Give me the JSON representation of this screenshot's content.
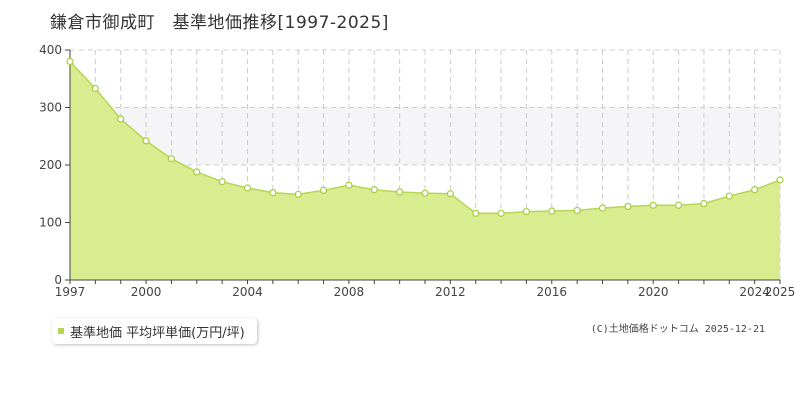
{
  "title": "鎌倉市御成町　基準地価推移[1997-2025]",
  "legend": {
    "label": "基準地価 平均坪単価(万円/坪)"
  },
  "copyright": "(C)土地価格ドットコム 2025-12-21",
  "colors": {
    "fill": "#d9ec8f",
    "line": "#b8d656",
    "marker_fill": "#ffffff",
    "marker_stroke": "#a9cc3d",
    "band": "#f5f5f7",
    "grid": "#cccccc",
    "axis": "#444444"
  },
  "chart_data": {
    "type": "area",
    "x": [
      1997,
      1998,
      1999,
      2000,
      2001,
      2002,
      2003,
      2004,
      2005,
      2006,
      2007,
      2008,
      2009,
      2010,
      2011,
      2012,
      2013,
      2014,
      2015,
      2016,
      2017,
      2018,
      2019,
      2020,
      2021,
      2022,
      2023,
      2024,
      2025
    ],
    "series": [
      {
        "name": "基準地価 平均坪単価(万円/坪)",
        "values": [
          380,
          333,
          280,
          242,
          211,
          188,
          171,
          160,
          152,
          149,
          156,
          165,
          157,
          153,
          151,
          150,
          116,
          116,
          119,
          120,
          121,
          125,
          128,
          130,
          130,
          133,
          146,
          157,
          174
        ]
      }
    ],
    "xticks": [
      1997,
      2000,
      2004,
      2008,
      2012,
      2016,
      2020,
      2024,
      2025
    ],
    "yticks": [
      0,
      100,
      200,
      300,
      400
    ],
    "xlim": [
      1997,
      2025
    ],
    "ylim": [
      0,
      400
    ],
    "shaded_y_band": [
      200,
      300
    ],
    "grid": true
  }
}
